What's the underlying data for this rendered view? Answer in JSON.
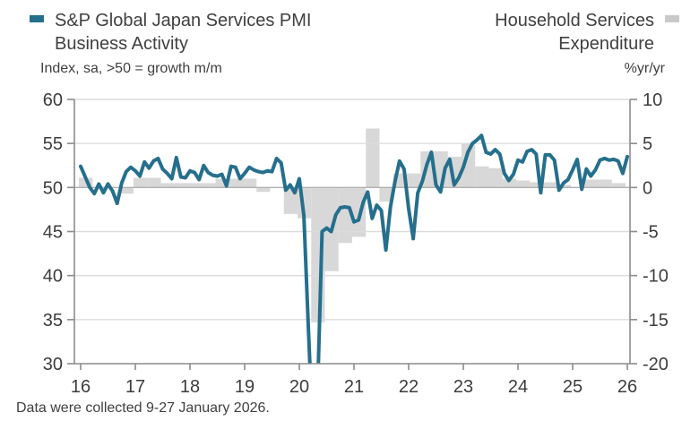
{
  "legend_left": {
    "label_line1": "S&P Global Japan Services PMI",
    "label_line2": "Business Activity",
    "marker_color": "#256f8d"
  },
  "legend_right": {
    "label_line1": "Household Services",
    "label_line2": "Expenditure",
    "marker_color": "#c9c9c9"
  },
  "left_axis_label": "Index, sa, >50 = growth m/m",
  "right_axis_label": "%yr/yr",
  "footer": "Data were collected 9-27 January 2026.",
  "colors": {
    "line": "#256f8d",
    "bar": "#d8d8d8",
    "gridline": "#dcdcdc",
    "zero_line": "#b0b0b0",
    "axis": "#8c8c8c",
    "text": "#404040"
  },
  "chart_data": {
    "type": "combo",
    "title": "",
    "left_axis": {
      "title": "Index, sa, >50 = growth m/m",
      "min": 30,
      "max": 60,
      "ticks": [
        60,
        55,
        50,
        45,
        40,
        35,
        30
      ]
    },
    "right_axis": {
      "title": "%yr/yr",
      "min": -20,
      "max": 10,
      "ticks": [
        10,
        5,
        0,
        -5,
        -10,
        -15,
        -20
      ]
    },
    "x_axis": {
      "tick_labels": [
        "16",
        "17",
        "18",
        "19",
        "20",
        "21",
        "22",
        "23",
        "24",
        "25",
        "26"
      ],
      "tick_years": [
        2016,
        2017,
        2018,
        2019,
        2020,
        2021,
        2022,
        2023,
        2024,
        2025,
        2026
      ]
    },
    "series": [
      {
        "name": "S&P Global Japan Services PMI Business Activity",
        "type": "line",
        "axis": "left",
        "color": "#256f8d",
        "start_year": 2016,
        "interval_months": 1,
        "values": [
          52.4,
          51.2,
          50.0,
          49.3,
          50.4,
          49.4,
          50.4,
          49.6,
          48.2,
          50.5,
          51.8,
          52.3,
          51.9,
          51.3,
          52.9,
          52.2,
          53.0,
          53.3,
          52.1,
          51.6,
          51.0,
          53.4,
          51.2,
          51.1,
          51.9,
          51.7,
          50.9,
          52.5,
          51.7,
          51.4,
          51.3,
          51.5,
          50.2,
          52.4,
          52.3,
          51.0,
          51.6,
          52.3,
          52.0,
          51.8,
          51.7,
          51.9,
          51.8,
          53.3,
          52.8,
          49.7,
          50.3,
          49.4,
          51.0,
          46.8,
          33.8,
          21.5,
          26.5,
          45.0,
          45.4,
          45.0,
          46.9,
          47.7,
          47.8,
          47.7,
          46.1,
          46.3,
          48.3,
          49.5,
          46.5,
          48.0,
          47.4,
          42.9,
          47.8,
          50.7,
          53.0,
          52.1,
          47.6,
          44.2,
          49.4,
          50.7,
          52.6,
          54.0,
          50.3,
          49.5,
          52.2,
          53.2,
          50.3,
          51.1,
          52.3,
          54.0,
          55.0,
          55.4,
          55.9,
          54.0,
          53.8,
          54.3,
          53.8,
          51.6,
          50.8,
          51.5,
          53.1,
          52.9,
          54.1,
          54.3,
          53.8,
          49.4,
          53.7,
          53.7,
          53.1,
          49.7,
          50.5,
          50.9,
          52.0,
          53.2,
          49.8,
          52.1,
          51.3,
          52.0,
          53.1,
          53.3,
          53.1,
          53.2,
          53.0,
          51.6,
          53.5
        ]
      },
      {
        "name": "Household Services Expenditure",
        "type": "bar",
        "axis": "right",
        "color": "#d8d8d8",
        "start_year": 2016,
        "interval_months": 3,
        "values": [
          1.1,
          0.0,
          0.0,
          -0.7,
          1.1,
          1.1,
          0.5,
          0.5,
          0.5,
          0.5,
          1.0,
          1.0,
          1.0,
          -0.5,
          0.0,
          -3.0,
          -3.5,
          -15.3,
          -9.5,
          -6.3,
          -5.6,
          6.7,
          -1.6,
          1.6,
          1.6,
          4.1,
          4.1,
          3.5,
          5.0,
          2.4,
          2.2,
          1.0,
          0.8,
          0.6,
          0.6,
          0.3,
          0.0,
          0.9,
          0.9,
          0.5
        ]
      }
    ]
  }
}
